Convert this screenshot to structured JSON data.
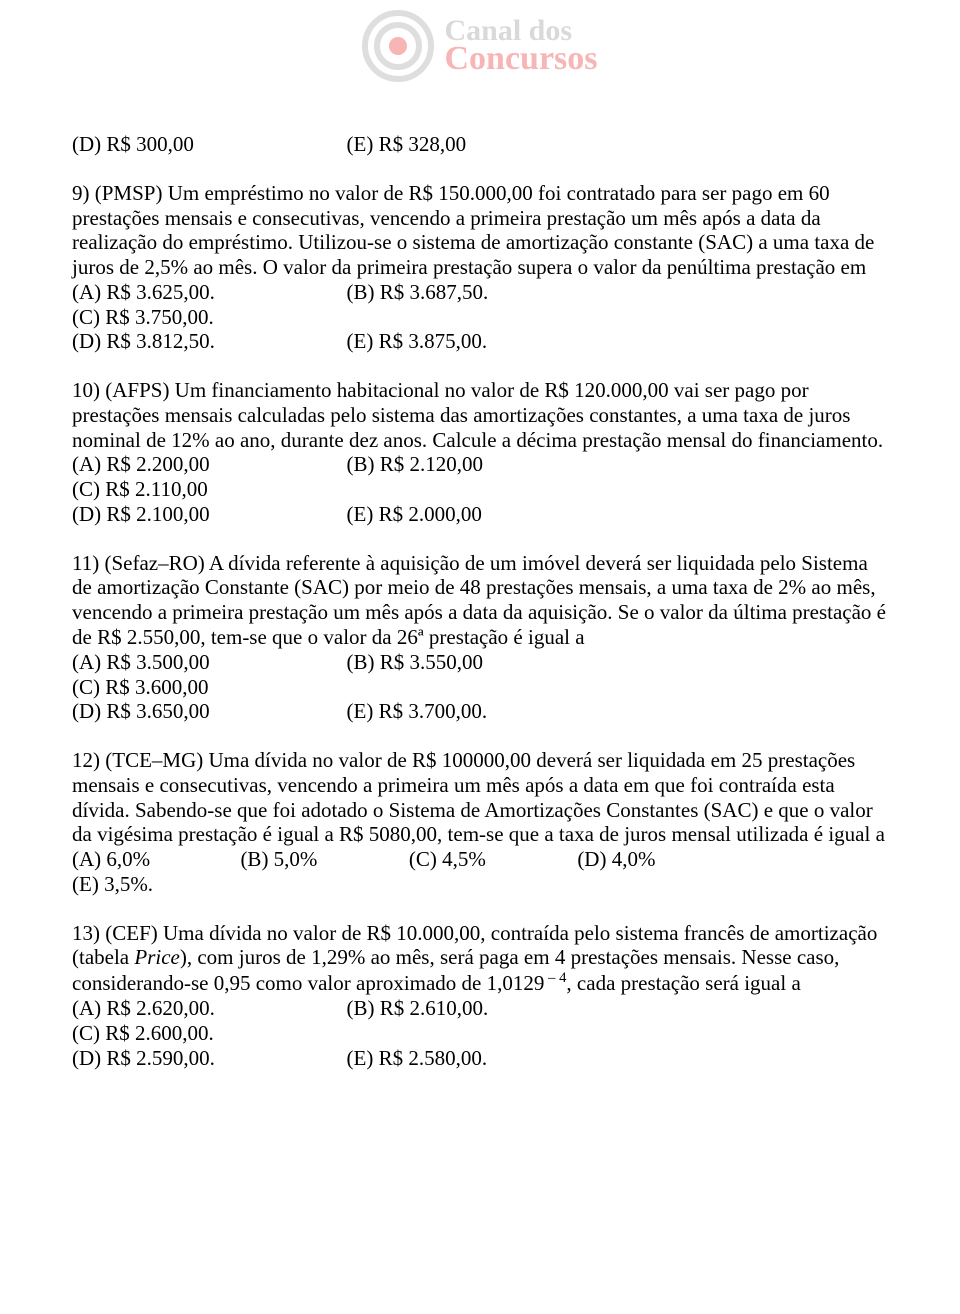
{
  "logo": {
    "top": "Canal dos",
    "bottom": "Concursos"
  },
  "q8_tail": {
    "d": "(D) R$ 300,00",
    "e": "(E) R$ 328,00"
  },
  "q9": {
    "text": "9) (PMSP) Um empréstimo no valor de R$ 150.000,00 foi contratado para ser pago em 60 prestações mensais e consecutivas, vencendo a primeira prestação um mês após a data da realização do empréstimo. Utilizou-se o sistema de amortização constante (SAC) a uma taxa de juros de 2,5% ao mês. O valor da primeira prestação supera o valor da penúltima prestação em",
    "a": "(A) R$ 3.625,00.",
    "b": "(B) R$ 3.687,50.",
    "c": "(C) R$ 3.750,00.",
    "d": "(D) R$ 3.812,50.",
    "e": "(E) R$ 3.875,00."
  },
  "q10": {
    "text": "10) (AFPS) Um financiamento habitacional no valor de R$ 120.000,00 vai ser pago por prestações mensais calculadas pelo sistema das amortizações constantes, a uma taxa de juros nominal de 12% ao ano, durante dez anos. Calcule a décima prestação mensal do financiamento.",
    "a": "(A) R$ 2.200,00",
    "b": "(B) R$ 2.120,00",
    "c": "(C) R$ 2.110,00",
    "d": "(D) R$ 2.100,00",
    "e": "(E) R$ 2.000,00"
  },
  "q11": {
    "text": "11) (Sefaz–RO) A dívida referente à aquisição de um imóvel deverá ser liquidada pelo Sistema de amortização Constante (SAC) por meio de 48 prestações mensais, a uma taxa de 2% ao mês, vencendo a primeira prestação um mês após a data da aquisição. Se o valor da última prestação é de R$ 2.550,00, tem-se que o valor da 26ª prestação é igual a",
    "a": "(A) R$ 3.500,00",
    "b": "(B) R$ 3.550,00",
    "c": "(C) R$ 3.600,00",
    "d": "(D) R$ 3.650,00",
    "e": "(E) R$ 3.700,00."
  },
  "q12": {
    "text": "12) (TCE–MG) Uma dívida no valor de R$ 100000,00 deverá ser liquidada em 25 prestações mensais e consecutivas, vencendo a primeira um mês após a data em que foi contraída esta dívida. Sabendo-se que foi adotado o Sistema de Amortizações Constantes (SAC) e que o valor da vigésima prestação é igual a R$ 5080,00, tem-se que a taxa de juros mensal utilizada é igual a",
    "a": "(A) 6,0%",
    "b": "(B) 5,0%",
    "c": "(C) 4,5%",
    "d": "(D) 4,0%",
    "e": "(E) 3,5%."
  },
  "q13": {
    "pre": "13) (CEF) Uma dívida no valor de R$ 10.000,00, contraída pelo sistema francês de amortização (tabela ",
    "price": "Price",
    "mid": "), com juros de 1,29% ao mês, será paga em 4 prestações mensais. Nesse caso, considerando-se 0,95 como valor aproximado de 1,0129",
    "exp": " – 4",
    "post": ", cada prestação será igual a",
    "a": "(A) R$ 2.620,00.",
    "b": "(B) R$ 2.610,00.",
    "c": "(C) R$ 2.600,00.",
    "d": "(D) R$ 2.590,00.",
    "e": "(E) R$ 2.580,00."
  }
}
